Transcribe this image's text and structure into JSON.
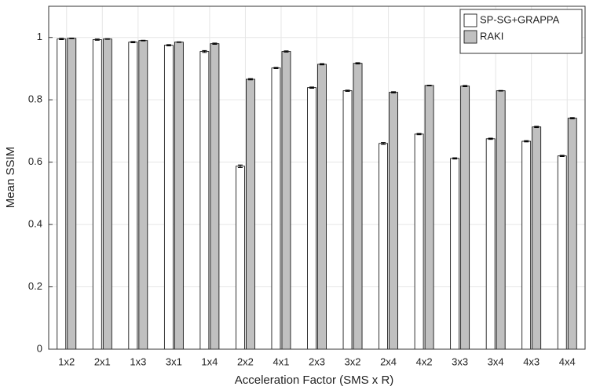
{
  "chart_data": {
    "type": "bar",
    "x_label": "Acceleration Factor (SMS x R)",
    "y_label": "Mean SSIM",
    "categories": [
      "1x2",
      "2x1",
      "1x3",
      "3x1",
      "1x4",
      "2x2",
      "4x1",
      "2x3",
      "3x2",
      "2x4",
      "4x2",
      "3x3",
      "3x4",
      "4x3",
      "4x4"
    ],
    "series": [
      {
        "name": "SP-SG+GRAPPA",
        "color": "#ffffff",
        "values": [
          0.995,
          0.993,
          0.985,
          0.975,
          0.955,
          0.587,
          0.902,
          0.839,
          0.829,
          0.66,
          0.69,
          0.612,
          0.675,
          0.667,
          0.62
        ],
        "errors": [
          0.002,
          0.002,
          0.002,
          0.002,
          0.003,
          0.004,
          0.002,
          0.002,
          0.002,
          0.003,
          0.002,
          0.002,
          0.002,
          0.002,
          0.002
        ]
      },
      {
        "name": "RAKI",
        "color": "#c0c0c0",
        "values": [
          0.997,
          0.995,
          0.99,
          0.985,
          0.98,
          0.866,
          0.955,
          0.914,
          0.917,
          0.824,
          0.846,
          0.844,
          0.829,
          0.713,
          0.741
        ],
        "errors": [
          0.001,
          0.001,
          0.001,
          0.001,
          0.002,
          0.002,
          0.002,
          0.002,
          0.002,
          0.002,
          0.001,
          0.002,
          0.001,
          0.002,
          0.002
        ]
      }
    ],
    "ylim": [
      0,
      1.1
    ],
    "yticks": [
      0,
      0.2,
      0.4,
      0.6,
      0.8,
      1
    ],
    "grid": true,
    "legend": "northeast"
  }
}
